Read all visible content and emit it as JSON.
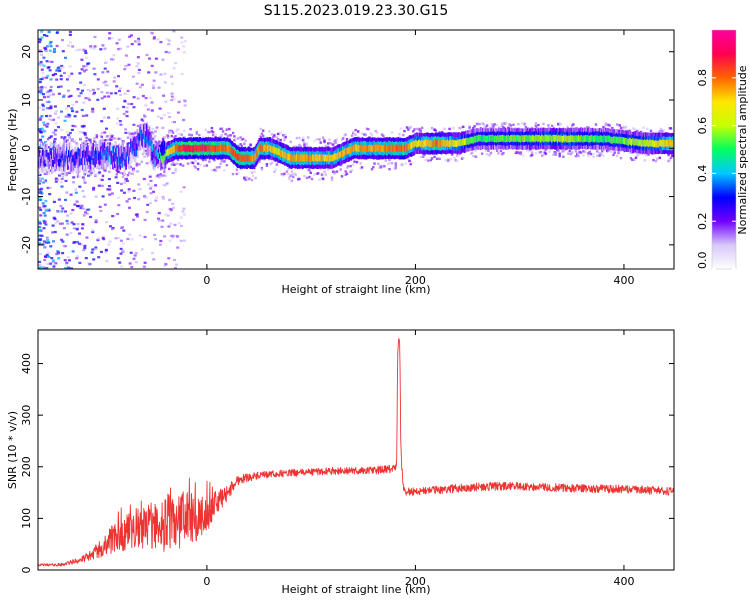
{
  "title": "S115.2023.019.23.30.G15",
  "chart_data": [
    {
      "type": "heatmap",
      "xlabel": "Height of straight line (km)",
      "ylabel": "Frequency (Hz)",
      "xlim": [
        -162,
        448
      ],
      "ylim": [
        -25,
        24.5
      ],
      "xticks": [
        0,
        200,
        400
      ],
      "yticks": [
        -20,
        -10,
        0,
        10,
        20
      ],
      "colorbar": {
        "label": "Normalized spectral amplitude",
        "range": [
          0,
          1
        ],
        "ticks": [
          0.0,
          0.2,
          0.4,
          0.6,
          0.8
        ],
        "tick_labels": [
          "0.0",
          "0.2",
          "0.4",
          "0.6",
          "0.8"
        ],
        "colormap": [
          "#ffffff",
          "#d8c8f8",
          "#7000ff",
          "#0000ff",
          "#00c8ff",
          "#00ff60",
          "#c8ff00",
          "#ffe600",
          "#ff6400",
          "#ff0050",
          "#ff00a0"
        ]
      },
      "ridge": {
        "x": [
          -160,
          -140,
          -120,
          -100,
          -80,
          -70,
          -60,
          -50,
          -40,
          -30,
          -20,
          0,
          20,
          30,
          40,
          45,
          50,
          60,
          80,
          100,
          120,
          140,
          160,
          180,
          190,
          200,
          220,
          240,
          260,
          300,
          340,
          380,
          420,
          448
        ],
        "freq": [
          -2,
          -2,
          -2,
          -1,
          -2,
          0,
          3,
          -2,
          -1,
          0,
          0,
          0,
          0,
          -2,
          -2,
          -2,
          0,
          0,
          -2,
          -2,
          -2,
          0,
          0,
          0,
          0,
          1,
          1,
          1,
          2,
          2,
          2,
          2,
          1,
          1
        ],
        "amplitude": [
          0.25,
          0.3,
          0.3,
          0.35,
          0.35,
          0.3,
          0.35,
          0.4,
          0.6,
          0.8,
          0.9,
          0.85,
          0.8,
          0.85,
          0.8,
          0.75,
          0.8,
          0.7,
          0.75,
          0.75,
          0.7,
          0.75,
          0.75,
          0.8,
          0.8,
          0.65,
          0.8,
          0.65,
          0.5,
          0.55,
          0.6,
          0.5,
          0.6,
          0.75
        ]
      }
    },
    {
      "type": "line",
      "xlabel": "Height of straight line (km)",
      "ylabel": "SNR (10 * v/v)",
      "xlim": [
        -162,
        448
      ],
      "ylim": [
        0,
        465
      ],
      "xticks": [
        0,
        200,
        400
      ],
      "yticks": [
        0,
        100,
        200,
        300,
        400
      ],
      "color": "#ee3333",
      "series": [
        {
          "x": [
            -162,
            -140,
            -120,
            -110,
            -100,
            -90,
            -80,
            -70,
            -60,
            -50,
            -40,
            -30,
            -20,
            -10,
            0,
            10,
            20,
            30,
            40,
            60,
            80,
            100,
            120,
            140,
            160,
            175,
            182,
            183,
            184,
            185,
            186,
            188,
            190,
            200,
            220,
            250,
            280,
            300,
            330,
            360,
            390,
            420,
            448
          ],
          "y": [
            10,
            10,
            20,
            30,
            45,
            60,
            70,
            75,
            80,
            85,
            90,
            95,
            100,
            100,
            110,
            130,
            150,
            175,
            180,
            185,
            188,
            190,
            192,
            192,
            193,
            195,
            200,
            420,
            450,
            440,
            230,
            170,
            152,
            152,
            155,
            160,
            162,
            162,
            160,
            158,
            157,
            155,
            152
          ],
          "noise": [
            2,
            3,
            6,
            10,
            20,
            30,
            35,
            45,
            40,
            50,
            55,
            60,
            55,
            45,
            35,
            25,
            15,
            10,
            8,
            7,
            7,
            7,
            7,
            7,
            8,
            8,
            8,
            0,
            0,
            0,
            10,
            12,
            8,
            8,
            8,
            8,
            8,
            8,
            8,
            8,
            8,
            8,
            8
          ]
        }
      ]
    }
  ]
}
